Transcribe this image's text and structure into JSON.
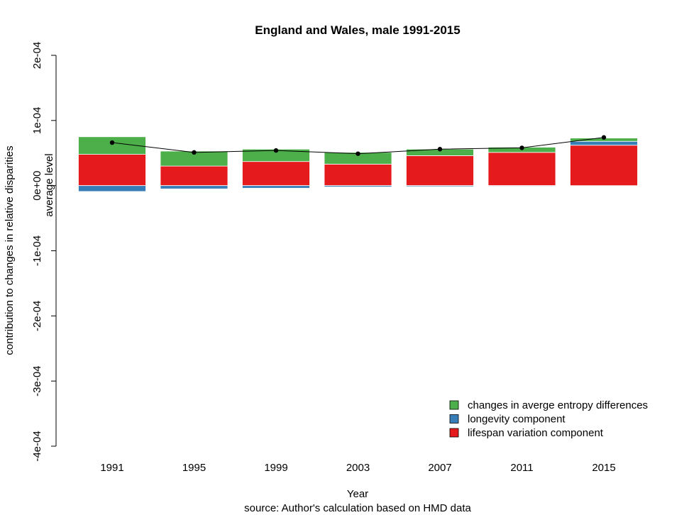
{
  "chart_data": {
    "type": "bar",
    "stacked": true,
    "title": "England and Wales, male 1991-2015",
    "xlabel": "Year",
    "caption": "source: Author's calculation based on HMD data",
    "ylabel": "contribution to changes in relative disparities",
    "ylabel2": "average level",
    "ylim": [
      -0.0004,
      0.0002
    ],
    "yticks": [
      0.0002,
      0.0001,
      0,
      -0.0001,
      -0.0002,
      -0.0003,
      -0.0004
    ],
    "ytick_labels": [
      "2e-04",
      "1e-04",
      "0e+00",
      "-1e-04",
      "-2e-04",
      "-3e-04",
      "-4e-04"
    ],
    "categories": [
      "1991",
      "1995",
      "1999",
      "2003",
      "2007",
      "2011",
      "2015"
    ],
    "grid": false,
    "legend_position": "bottom-right",
    "series": [
      {
        "name": "lifespan variation component",
        "color": "#e41a1c",
        "values": [
          4.8e-05,
          3e-05,
          3.7e-05,
          3.3e-05,
          4.6e-05,
          5.1e-05,
          6.2e-05
        ]
      },
      {
        "name": "longevity component",
        "color": "#377eb8",
        "values": [
          -9e-06,
          -5e-06,
          -4e-06,
          -2e-06,
          -1.5e-06,
          -1e-06,
          6e-06
        ]
      },
      {
        "name": "changes in averge entropy differences",
        "color": "#4daf4a",
        "values": [
          2.7e-05,
          2.3e-05,
          1.9e-05,
          1.8e-05,
          1e-05,
          8e-06,
          5e-06
        ]
      }
    ],
    "average_level": {
      "values": [
        6.6e-05,
        5.1e-05,
        5.4e-05,
        4.9e-05,
        5.6e-05,
        5.8e-05,
        7.4e-05
      ],
      "color": "#000000"
    },
    "legend": [
      {
        "label": "changes in averge entropy differences",
        "color": "#4daf4a"
      },
      {
        "label": "longevity component",
        "color": "#377eb8"
      },
      {
        "label": "lifespan variation component",
        "color": "#e41a1c"
      }
    ]
  }
}
